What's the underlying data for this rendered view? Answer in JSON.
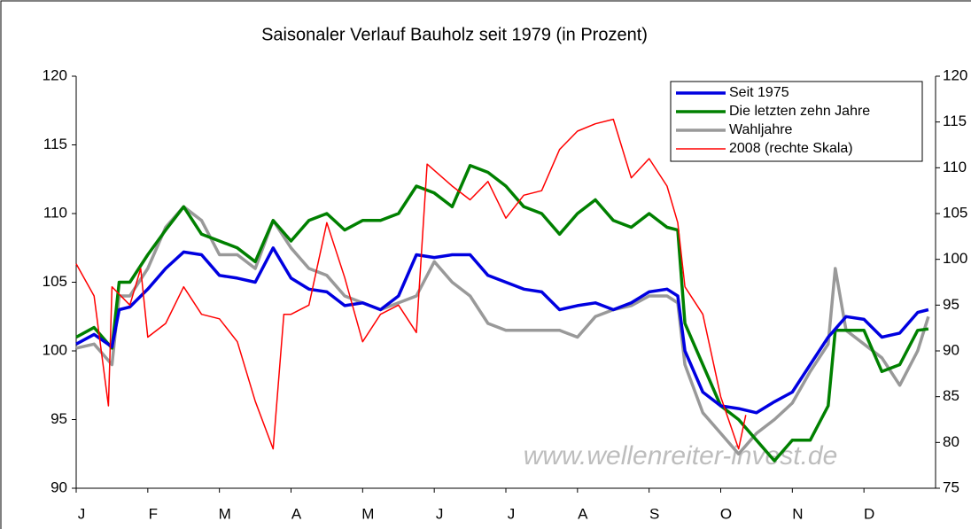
{
  "chart_data": {
    "type": "line",
    "title": "Saisonaler Verlauf Bauholz seit 1979 (in Prozent)",
    "annotation": "www.wellenreiter-invest.de",
    "xlim": [
      0,
      12
    ],
    "xticks": [
      {
        "value": 0,
        "label": "J"
      },
      {
        "value": 1,
        "label": "F"
      },
      {
        "value": 2,
        "label": "M"
      },
      {
        "value": 3,
        "label": "A"
      },
      {
        "value": 4,
        "label": "M"
      },
      {
        "value": 5,
        "label": "J"
      },
      {
        "value": 6,
        "label": "J"
      },
      {
        "value": 7,
        "label": "A"
      },
      {
        "value": 8,
        "label": "S"
      },
      {
        "value": 9,
        "label": "O"
      },
      {
        "value": 10,
        "label": "N"
      },
      {
        "value": 11,
        "label": "D"
      }
    ],
    "ylim": [
      90,
      120
    ],
    "yticks": [
      90,
      95,
      100,
      105,
      110,
      115,
      120
    ],
    "y2lim": [
      75,
      120
    ],
    "y2ticks": [
      75,
      80,
      85,
      90,
      95,
      100,
      105,
      110,
      115,
      120
    ],
    "legend": "top-right",
    "series": [
      {
        "name": "Seit 1975",
        "color": "#0000e0",
        "width": 3.5,
        "x": [
          0,
          0.25,
          0.5,
          0.6,
          0.75,
          1.0,
          1.25,
          1.5,
          1.75,
          2.0,
          2.25,
          2.5,
          2.75,
          3.0,
          3.25,
          3.5,
          3.75,
          4.0,
          4.25,
          4.5,
          4.75,
          5.0,
          5.25,
          5.5,
          5.75,
          6.0,
          6.25,
          6.5,
          6.75,
          7.0,
          7.25,
          7.5,
          7.75,
          8.0,
          8.25,
          8.4,
          8.5,
          8.75,
          9.0,
          9.25,
          9.5,
          9.75,
          10.0,
          10.25,
          10.5,
          10.75,
          11.0,
          11.25,
          11.5,
          11.75,
          11.9
        ],
        "values": [
          100.5,
          101.2,
          100.3,
          103,
          103.2,
          104.5,
          106,
          107.2,
          107,
          105.5,
          105.3,
          105,
          107.5,
          105.3,
          104.5,
          104.3,
          103.3,
          103.5,
          103,
          104,
          107,
          106.8,
          107,
          107,
          105.5,
          105,
          104.5,
          104.3,
          103,
          103.3,
          103.5,
          103,
          103.5,
          104.3,
          104.5,
          104,
          100,
          97,
          96,
          95.8,
          95.5,
          96.3,
          97,
          99,
          101,
          102.5,
          102.3,
          101,
          101.3,
          102.8,
          103
        ]
      },
      {
        "name": "Die letzten zehn Jahre",
        "color": "#008000",
        "width": 3.5,
        "x": [
          0,
          0.25,
          0.5,
          0.6,
          0.75,
          1.0,
          1.25,
          1.5,
          1.75,
          2.0,
          2.25,
          2.5,
          2.75,
          3.0,
          3.25,
          3.5,
          3.75,
          4.0,
          4.25,
          4.5,
          4.75,
          5.0,
          5.25,
          5.5,
          5.75,
          6.0,
          6.25,
          6.5,
          6.75,
          7.0,
          7.25,
          7.5,
          7.75,
          8.0,
          8.25,
          8.4,
          8.5,
          8.75,
          9.0,
          9.25,
          9.5,
          9.75,
          10.0,
          10.25,
          10.5,
          10.6,
          10.75,
          11.0,
          11.25,
          11.5,
          11.75,
          11.9
        ],
        "values": [
          101,
          101.7,
          100.2,
          105,
          105,
          107,
          108.8,
          110.5,
          108.5,
          108,
          107.5,
          106.5,
          109.5,
          108,
          109.5,
          110,
          108.8,
          109.5,
          109.5,
          110,
          112,
          111.5,
          110.5,
          113.5,
          113,
          112,
          110.5,
          110,
          108.5,
          110,
          111,
          109.5,
          109,
          110,
          109,
          108.8,
          102,
          99,
          96,
          95,
          93.5,
          92,
          93.5,
          93.5,
          96,
          101.5,
          101.5,
          101.5,
          98.5,
          99,
          101.5,
          101.6
        ]
      },
      {
        "name": "Wahljahre",
        "color": "#999999",
        "width": 3.5,
        "x": [
          0,
          0.25,
          0.5,
          0.6,
          0.75,
          1.0,
          1.25,
          1.5,
          1.75,
          2.0,
          2.25,
          2.5,
          2.75,
          3.0,
          3.25,
          3.5,
          3.75,
          4.0,
          4.25,
          4.5,
          4.75,
          5.0,
          5.25,
          5.5,
          5.75,
          6.0,
          6.25,
          6.5,
          6.75,
          7.0,
          7.25,
          7.5,
          7.75,
          8.0,
          8.25,
          8.4,
          8.5,
          8.75,
          9.0,
          9.25,
          9.5,
          9.75,
          10.0,
          10.25,
          10.5,
          10.6,
          10.75,
          11.0,
          11.25,
          11.5,
          11.75,
          11.9
        ],
        "values": [
          100.2,
          100.5,
          99,
          104,
          104,
          106,
          109,
          110.5,
          109.5,
          107,
          107,
          106,
          109.5,
          107.5,
          106,
          105.5,
          104,
          103.5,
          103,
          103.5,
          104,
          106.5,
          105,
          104,
          102,
          101.5,
          101.5,
          101.5,
          101.5,
          101,
          102.5,
          103,
          103.3,
          104,
          104,
          103.5,
          99,
          95.5,
          94,
          92.5,
          94,
          95,
          96.2,
          98.5,
          100.5,
          106,
          101.5,
          100.5,
          99.5,
          97.5,
          100,
          102.5
        ]
      },
      {
        "name": "2008 (rechte Skala)",
        "color": "#ff0000",
        "width": 1.5,
        "axis": "y2",
        "x": [
          0,
          0.25,
          0.45,
          0.5,
          0.75,
          0.9,
          1.0,
          1.25,
          1.5,
          1.75,
          2.0,
          2.25,
          2.5,
          2.75,
          2.9,
          3.0,
          3.25,
          3.5,
          3.75,
          4.0,
          4.25,
          4.5,
          4.75,
          4.9,
          5.25,
          5.5,
          5.75,
          6.0,
          6.25,
          6.5,
          6.75,
          7.0,
          7.25,
          7.5,
          7.75,
          8.0,
          8.25,
          8.4,
          8.5,
          8.75,
          9.0,
          9.25,
          9.35
        ],
        "values": [
          99.5,
          96,
          84,
          97,
          95,
          99,
          91.5,
          93,
          97,
          94,
          93.5,
          91,
          84.5,
          79.3,
          94,
          94,
          95,
          104,
          98,
          91,
          94,
          95,
          92,
          110.4,
          108,
          106.5,
          108.5,
          104.5,
          107,
          107.5,
          112,
          114,
          114.8,
          115.3,
          108.9,
          111,
          108,
          104,
          97,
          94,
          85,
          79.3,
          83
        ]
      }
    ]
  }
}
